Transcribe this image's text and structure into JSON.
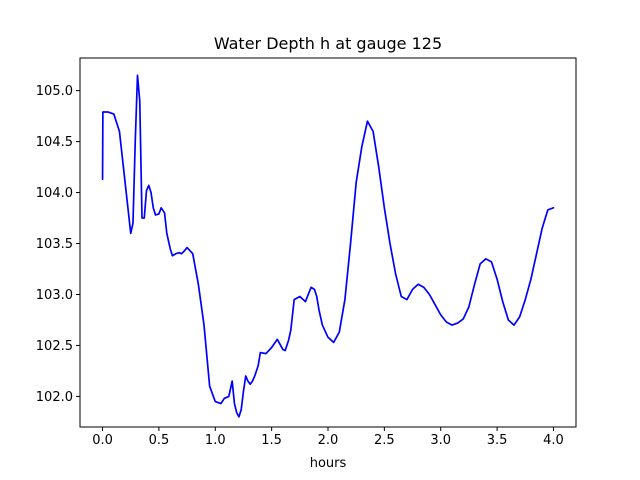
{
  "chart_data": {
    "type": "line",
    "title": "Water Depth h at gauge 125",
    "xlabel": "hours",
    "ylabel": "",
    "xlim": [
      -0.2,
      4.2
    ],
    "ylim": [
      101.7,
      105.32
    ],
    "xticks": [
      0.0,
      0.5,
      1.0,
      1.5,
      2.0,
      2.5,
      3.0,
      3.5,
      4.0
    ],
    "xtick_labels": [
      "0.0",
      "0.5",
      "1.0",
      "1.5",
      "2.0",
      "2.5",
      "3.0",
      "3.5",
      "4.0"
    ],
    "yticks": [
      102.0,
      102.5,
      103.0,
      103.5,
      104.0,
      104.5,
      105.0
    ],
    "ytick_labels": [
      "102.0",
      "102.5",
      "103.0",
      "103.5",
      "104.0",
      "104.5",
      "105.0"
    ],
    "grid": false,
    "legend": "none",
    "series": [
      {
        "color": "#0000ff",
        "x": [
          0.0,
          0.003,
          0.006,
          0.05,
          0.1,
          0.15,
          0.2,
          0.25,
          0.27,
          0.29,
          0.31,
          0.33,
          0.35,
          0.37,
          0.39,
          0.41,
          0.43,
          0.45,
          0.47,
          0.5,
          0.52,
          0.55,
          0.57,
          0.6,
          0.62,
          0.65,
          0.68,
          0.7,
          0.72,
          0.75,
          0.8,
          0.85,
          0.9,
          0.95,
          1.0,
          1.05,
          1.08,
          1.12,
          1.15,
          1.17,
          1.19,
          1.21,
          1.23,
          1.25,
          1.27,
          1.29,
          1.31,
          1.33,
          1.35,
          1.38,
          1.4,
          1.45,
          1.5,
          1.55,
          1.6,
          1.62,
          1.65,
          1.67,
          1.7,
          1.75,
          1.8,
          1.85,
          1.88,
          1.9,
          1.92,
          1.95,
          2.0,
          2.05,
          2.1,
          2.15,
          2.2,
          2.25,
          2.3,
          2.35,
          2.4,
          2.45,
          2.5,
          2.55,
          2.6,
          2.65,
          2.7,
          2.75,
          2.8,
          2.85,
          2.9,
          2.95,
          3.0,
          3.05,
          3.1,
          3.15,
          3.2,
          3.25,
          3.3,
          3.35,
          3.4,
          3.45,
          3.5,
          3.55,
          3.6,
          3.65,
          3.7,
          3.75,
          3.8,
          3.85,
          3.9,
          3.95,
          4.0
        ],
        "values": [
          104.13,
          104.79,
          104.79,
          104.79,
          104.77,
          104.6,
          104.1,
          103.6,
          103.7,
          104.5,
          105.15,
          104.9,
          103.75,
          103.75,
          104.02,
          104.07,
          104.0,
          103.85,
          103.78,
          103.79,
          103.85,
          103.8,
          103.6,
          103.45,
          103.38,
          103.4,
          103.41,
          103.4,
          103.42,
          103.46,
          103.4,
          103.1,
          102.7,
          102.1,
          101.95,
          101.93,
          101.98,
          102.0,
          102.15,
          101.93,
          101.84,
          101.8,
          101.87,
          102.05,
          102.2,
          102.15,
          102.12,
          102.15,
          102.2,
          102.3,
          102.43,
          102.42,
          102.48,
          102.56,
          102.46,
          102.45,
          102.55,
          102.65,
          102.95,
          102.98,
          102.93,
          103.07,
          103.05,
          102.98,
          102.85,
          102.7,
          102.58,
          102.53,
          102.63,
          102.95,
          103.5,
          104.1,
          104.45,
          104.7,
          104.6,
          104.25,
          103.85,
          103.5,
          103.2,
          102.98,
          102.95,
          103.05,
          103.1,
          103.07,
          103.0,
          102.9,
          102.8,
          102.73,
          102.7,
          102.72,
          102.76,
          102.88,
          103.1,
          103.3,
          103.35,
          103.32,
          103.15,
          102.93,
          102.75,
          102.7,
          102.78,
          102.95,
          103.15,
          103.4,
          103.65,
          103.83,
          103.85
        ]
      }
    ]
  }
}
